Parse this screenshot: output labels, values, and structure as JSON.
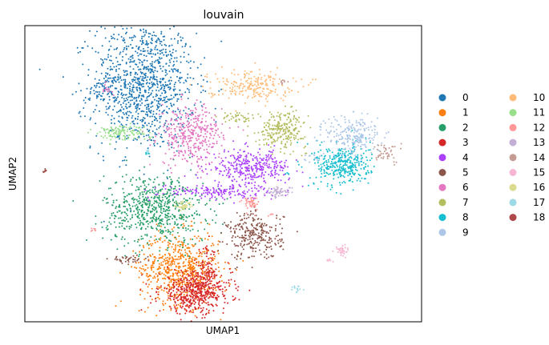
{
  "chart_data": {
    "type": "scatter",
    "title": "louvain",
    "xlabel": "UMAP1",
    "ylabel": "UMAP2",
    "xticks": [],
    "yticks": [],
    "grid": false,
    "legend_placement": "right-outside",
    "legend_columns": 2,
    "xlim": [
      0,
      100
    ],
    "ylim": [
      0,
      100
    ],
    "series": [
      {
        "name": "0",
        "color": "#1f77b4",
        "clusters": [
          {
            "cx": 30,
            "cy": 80,
            "sx": 6.5,
            "sy": 11,
            "n": 1100
          },
          {
            "cx": 21,
            "cy": 79,
            "sx": 2,
            "sy": 2,
            "n": 40
          }
        ]
      },
      {
        "name": "1",
        "color": "#ff7f0e",
        "clusters": [
          {
            "cx": 39,
            "cy": 18,
            "sx": 5,
            "sy": 6,
            "n": 650
          }
        ]
      },
      {
        "name": "2",
        "color": "#279e68",
        "clusters": [
          {
            "cx": 33,
            "cy": 38,
            "sx": 6.5,
            "sy": 6,
            "n": 650
          }
        ]
      },
      {
        "name": "3",
        "color": "#d62728",
        "clusters": [
          {
            "cx": 43,
            "cy": 10,
            "sx": 4.5,
            "sy": 3.5,
            "n": 500
          },
          {
            "cx": 46,
            "cy": 17,
            "sx": 1.2,
            "sy": 4,
            "n": 80
          }
        ]
      },
      {
        "name": "4",
        "color": "#aa40fc",
        "clusters": [
          {
            "cx": 57,
            "cy": 52,
            "sx": 5,
            "sy": 3,
            "n": 350
          },
          {
            "cx": 48,
            "cy": 44,
            "sx": 7,
            "sy": 1.2,
            "n": 160
          }
        ]
      },
      {
        "name": "5",
        "color": "#8c564b",
        "clusters": [
          {
            "cx": 58,
            "cy": 29,
            "sx": 3.5,
            "sy": 4,
            "n": 280
          },
          {
            "cx": 26,
            "cy": 21,
            "sx": 2.5,
            "sy": 0.7,
            "n": 40
          },
          {
            "cx": 5,
            "cy": 51,
            "sx": 0.3,
            "sy": 0.4,
            "n": 4
          }
        ]
      },
      {
        "name": "6",
        "color": "#e377c2",
        "clusters": [
          {
            "cx": 42,
            "cy": 63,
            "sx": 4,
            "sy": 5,
            "n": 380
          },
          {
            "cx": 20.5,
            "cy": 78.5,
            "sx": 0.8,
            "sy": 0.8,
            "n": 14
          }
        ]
      },
      {
        "name": "7",
        "color": "#b5bd61",
        "clusters": [
          {
            "cx": 65,
            "cy": 65,
            "sx": 3,
            "sy": 3,
            "n": 240
          },
          {
            "cx": 54,
            "cy": 69,
            "sx": 2.2,
            "sy": 1,
            "n": 40
          }
        ]
      },
      {
        "name": "8",
        "color": "#17becf",
        "clusters": [
          {
            "cx": 80,
            "cy": 53,
            "sx": 3.5,
            "sy": 3.5,
            "n": 360
          },
          {
            "cx": 31,
            "cy": 57,
            "sx": 0.4,
            "sy": 0.4,
            "n": 6
          },
          {
            "cx": 66,
            "cy": 50,
            "sx": 0.3,
            "sy": 0.5,
            "n": 4
          }
        ]
      },
      {
        "name": "9",
        "color": "#aec7e8",
        "clusters": [
          {
            "cx": 83,
            "cy": 63,
            "sx": 3.5,
            "sy": 3.5,
            "n": 230
          },
          {
            "cx": 72,
            "cy": 55,
            "sx": 1.2,
            "sy": 1,
            "n": 14
          }
        ]
      },
      {
        "name": "10",
        "color": "#ffbb78",
        "clusters": [
          {
            "cx": 57,
            "cy": 80,
            "sx": 5.5,
            "sy": 2.5,
            "n": 220
          }
        ]
      },
      {
        "name": "11",
        "color": "#98df8a",
        "clusters": [
          {
            "cx": 24,
            "cy": 64,
            "sx": 3.5,
            "sy": 1.3,
            "n": 120
          }
        ]
      },
      {
        "name": "12",
        "color": "#ff9896",
        "clusters": [
          {
            "cx": 57,
            "cy": 40,
            "sx": 1,
            "sy": 1.2,
            "n": 50
          },
          {
            "cx": 17,
            "cy": 31,
            "sx": 0.4,
            "sy": 0.3,
            "n": 7
          },
          {
            "cx": 62,
            "cy": 36,
            "sx": 0.4,
            "sy": 0.3,
            "n": 4
          }
        ]
      },
      {
        "name": "13",
        "color": "#c5b0d5",
        "clusters": [
          {
            "cx": 64,
            "cy": 44,
            "sx": 1.8,
            "sy": 0.8,
            "n": 60
          }
        ]
      },
      {
        "name": "14",
        "color": "#c49c94",
        "clusters": [
          {
            "cx": 91,
            "cy": 57,
            "sx": 1.8,
            "sy": 1.8,
            "n": 45
          },
          {
            "cx": 65,
            "cy": 81,
            "sx": 0.7,
            "sy": 0.4,
            "n": 8
          }
        ]
      },
      {
        "name": "15",
        "color": "#f7b6d2",
        "clusters": [
          {
            "cx": 80,
            "cy": 24,
            "sx": 0.8,
            "sy": 1,
            "n": 35
          },
          {
            "cx": 77,
            "cy": 21,
            "sx": 0.6,
            "sy": 0.4,
            "n": 6
          }
        ]
      },
      {
        "name": "16",
        "color": "#dbdb8d",
        "clusters": [
          {
            "cx": 40,
            "cy": 39,
            "sx": 1.2,
            "sy": 0.8,
            "n": 40
          }
        ]
      },
      {
        "name": "17",
        "color": "#9edae5",
        "clusters": [
          {
            "cx": 69,
            "cy": 11,
            "sx": 0.8,
            "sy": 0.6,
            "n": 14
          },
          {
            "cx": 31,
            "cy": 57.5,
            "sx": 0.3,
            "sy": 0.3,
            "n": 5
          }
        ]
      },
      {
        "name": "18",
        "color": "#ad494a",
        "clusters": [
          {
            "cx": 5,
            "cy": 51,
            "sx": 0.3,
            "sy": 0.3,
            "n": 5
          }
        ]
      }
    ]
  }
}
